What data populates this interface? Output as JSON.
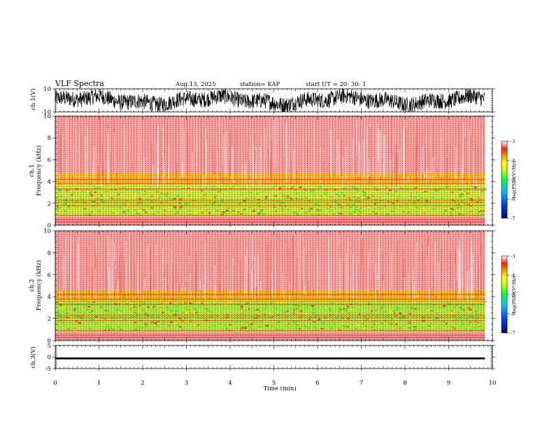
{
  "header": {
    "title": "VLF Spectra",
    "date": "Aug.13, 2025",
    "station": "station= KAP",
    "start": "start  UT  =   20: 30: 1"
  },
  "chart_data": [
    {
      "type": "line",
      "name": "ch1-waveform",
      "ylabel": "ch.1(V)",
      "ylim": [
        -10,
        10
      ],
      "y_tick_labels": [
        "10",
        "-10"
      ],
      "xlim": [
        0,
        10
      ],
      "data_end_min": 9.83,
      "description_range": [
        -10,
        10
      ]
    },
    {
      "type": "heatmap",
      "name": "ch1-spectrogram",
      "ylabel": "ch.1\nFrequency (kHz)",
      "ylabel_lines": [
        "ch.1",
        "Frequency  (kHz)"
      ],
      "ylim": [
        0,
        10
      ],
      "y_tick_labels": [
        "0",
        "2",
        "4",
        "6",
        "8",
        "10"
      ],
      "xlim": [
        0,
        10
      ],
      "data_end_min": 9.83,
      "bands_khz": [
        {
          "from": 0.0,
          "to": 0.8,
          "color": "#f0a8a8"
        },
        {
          "from": 0.8,
          "to": 3.8,
          "color": "#c8e040"
        },
        {
          "from": 3.8,
          "to": 4.8,
          "color": "#f0b020"
        },
        {
          "from": 4.8,
          "to": 10.0,
          "color": "#f49a9a"
        }
      ],
      "colorbar": {
        "label": "log(PSD)(V²/Hz)",
        "min": -7,
        "max": -3,
        "tick_labels": [
          "-3",
          "-4",
          "-5",
          "-6",
          "-7"
        ]
      }
    },
    {
      "type": "heatmap",
      "name": "ch2-spectrogram",
      "ylabel": "ch.2\nFrequency (kHz)",
      "ylabel_lines": [
        "ch.2",
        "Frequency  (kHz)"
      ],
      "ylim": [
        0,
        10
      ],
      "y_tick_labels": [
        "0",
        "2",
        "4",
        "6",
        "8",
        "10"
      ],
      "xlim": [
        0,
        10
      ],
      "data_end_min": 9.83,
      "bands_khz": [
        {
          "from": 0.0,
          "to": 0.8,
          "color": "#f0a8a8"
        },
        {
          "from": 0.8,
          "to": 3.5,
          "color": "#b0e040"
        },
        {
          "from": 3.5,
          "to": 4.6,
          "color": "#f0b020"
        },
        {
          "from": 4.6,
          "to": 10.0,
          "color": "#f49a9a"
        }
      ],
      "colorbar": {
        "label": "log(PSD)(V²/Hz)",
        "min": -7,
        "max": -3,
        "tick_labels": [
          "-3",
          "-4",
          "-5",
          "-6",
          "-7"
        ]
      }
    },
    {
      "type": "line",
      "name": "ch3-waveform",
      "ylabel": "ch.3(V)",
      "ylim": [
        -5,
        5
      ],
      "y_tick_labels": [
        "5",
        "0",
        "-5"
      ],
      "xlim": [
        0,
        10
      ],
      "xlabel": "Time (min)",
      "x_tick_labels": [
        "0",
        "1",
        "2",
        "3",
        "4",
        "5",
        "6",
        "7",
        "8",
        "9",
        "10"
      ],
      "data_end_min": 9.83,
      "level_v": [
        -1.0,
        -0.2
      ]
    }
  ]
}
